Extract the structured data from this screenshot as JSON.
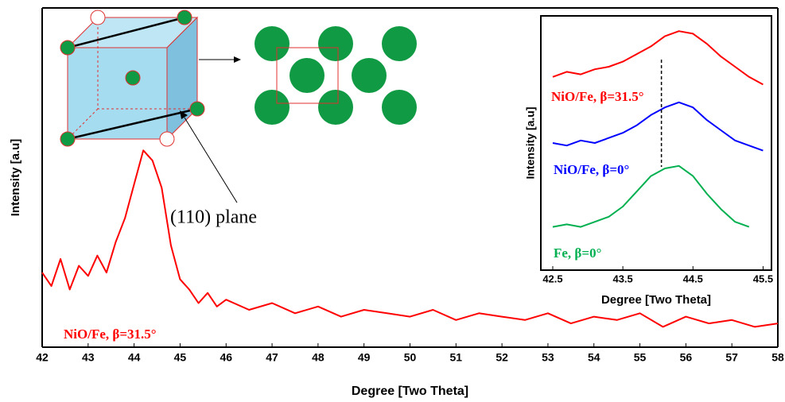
{
  "chart_data": [
    {
      "type": "line",
      "xlabel": "Degree  [Two Theta]",
      "ylabel": "Intensity [a.u]",
      "annotation": "(110) plane",
      "x": [
        42,
        42.2,
        42.4,
        42.6,
        42.8,
        43,
        43.2,
        43.4,
        43.6,
        43.8,
        44,
        44.2,
        44.4,
        44.6,
        44.8,
        45,
        45.2,
        45.4,
        45.6,
        45.8,
        46,
        46.5,
        47,
        47.5,
        48,
        48.5,
        49,
        49.5,
        50,
        50.5,
        51,
        51.5,
        52,
        52.5,
        53,
        53.5,
        54,
        54.5,
        55,
        55.5,
        56,
        56.5,
        57,
        57.5,
        58
      ],
      "series": [
        {
          "name": "NiO/Fe, β=31.5°",
          "color": "#ff0000",
          "values": [
            22,
            18,
            26,
            17,
            24,
            21,
            27,
            22,
            31,
            38,
            48,
            58,
            55,
            47,
            30,
            20,
            17,
            13,
            16,
            12,
            14,
            11,
            13,
            10,
            12,
            9,
            11,
            10,
            9,
            11,
            8,
            10,
            9,
            8,
            10,
            7,
            9,
            8,
            10,
            6,
            9,
            7,
            8,
            6,
            7
          ]
        }
      ],
      "xlim": [
        42,
        58
      ],
      "xticks": [
        42,
        43,
        44,
        45,
        46,
        47,
        48,
        49,
        50,
        51,
        52,
        53,
        54,
        55,
        56,
        57,
        58
      ],
      "ylim": [
        0,
        100
      ],
      "grid": false
    },
    {
      "type": "line",
      "xlabel": "Degree [Two Theta]",
      "ylabel": "Intensity [a.u]",
      "ref_line_x": 44.05,
      "x": [
        42.5,
        42.7,
        42.9,
        43.1,
        43.3,
        43.5,
        43.7,
        43.9,
        44.1,
        44.3,
        44.5,
        44.7,
        44.9,
        45.1,
        45.3,
        45.5
      ],
      "series": [
        {
          "name": "NiO/Fe, β=31.5°",
          "color": "#ff0000",
          "values": [
            76,
            78,
            77,
            79,
            80,
            82,
            85,
            88,
            92,
            94,
            93,
            89,
            84,
            80,
            76,
            73
          ]
        },
        {
          "name": "NiO/Fe, β=0°",
          "color": "#0000ff",
          "values": [
            50,
            49,
            51,
            50,
            52,
            54,
            57,
            61,
            64,
            66,
            64,
            59,
            55,
            51,
            49,
            47
          ]
        },
        {
          "name": "Fe, β=0°",
          "color": "#00b050",
          "values": [
            17,
            18,
            17,
            19,
            21,
            25,
            31,
            37,
            40,
            41,
            37,
            30,
            24,
            19,
            17,
            null
          ]
        }
      ],
      "xlim": [
        42.33,
        45.62
      ],
      "xticks": [
        42.5,
        43.5,
        44.5,
        45.5
      ],
      "ylim": [
        0,
        100
      ],
      "grid": false
    }
  ]
}
